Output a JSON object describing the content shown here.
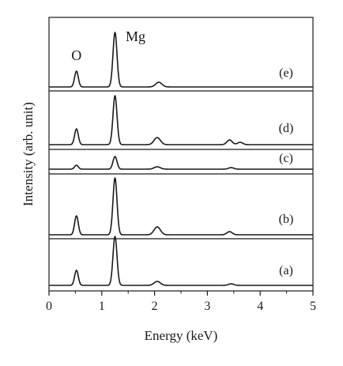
{
  "chart_data": {
    "type": "line",
    "xlabel": "Energy (keV)",
    "ylabel": "Intensity (arb. unit)",
    "xlim": [
      0,
      5
    ],
    "xticks": [
      0,
      1,
      2,
      3,
      4,
      5
    ],
    "x_tick_labels": [
      "0",
      "1",
      "2",
      "3",
      "4",
      "5"
    ],
    "grid": false,
    "peak_annotations": [
      {
        "label": "O",
        "energy_kev": 0.52
      },
      {
        "label": "Mg",
        "energy_kev": 1.25
      }
    ],
    "series": [
      {
        "name": "(e)",
        "baseline": 0,
        "peaks": [
          {
            "x": 0.52,
            "height": 20,
            "sigma": 0.035
          },
          {
            "x": 1.25,
            "height": 69,
            "sigma": 0.038
          },
          {
            "x": 2.08,
            "height": 6,
            "sigma": 0.06
          }
        ]
      },
      {
        "name": "(d)",
        "baseline": 0,
        "peaks": [
          {
            "x": 0.52,
            "height": 20,
            "sigma": 0.035
          },
          {
            "x": 1.25,
            "height": 62,
            "sigma": 0.038
          },
          {
            "x": 2.05,
            "height": 9,
            "sigma": 0.06
          },
          {
            "x": 3.42,
            "height": 6,
            "sigma": 0.05
          },
          {
            "x": 3.62,
            "height": 3,
            "sigma": 0.05
          }
        ]
      },
      {
        "name": "(c)",
        "baseline": 0,
        "peaks": [
          {
            "x": 0.52,
            "height": 5,
            "sigma": 0.035
          },
          {
            "x": 1.25,
            "height": 16,
            "sigma": 0.038
          },
          {
            "x": 2.05,
            "height": 3,
            "sigma": 0.06
          },
          {
            "x": 3.45,
            "height": 2,
            "sigma": 0.05
          }
        ]
      },
      {
        "name": "(b)",
        "baseline": 0,
        "peaks": [
          {
            "x": 0.52,
            "height": 24,
            "sigma": 0.035
          },
          {
            "x": 1.25,
            "height": 72,
            "sigma": 0.038
          },
          {
            "x": 2.05,
            "height": 10,
            "sigma": 0.06
          },
          {
            "x": 3.42,
            "height": 4,
            "sigma": 0.05
          }
        ]
      },
      {
        "name": "(a)",
        "baseline": 0,
        "peaks": [
          {
            "x": 0.52,
            "height": 19,
            "sigma": 0.035
          },
          {
            "x": 1.25,
            "height": 62,
            "sigma": 0.038
          },
          {
            "x": 2.05,
            "height": 5,
            "sigma": 0.06
          },
          {
            "x": 3.45,
            "height": 2,
            "sigma": 0.05
          }
        ]
      }
    ]
  }
}
